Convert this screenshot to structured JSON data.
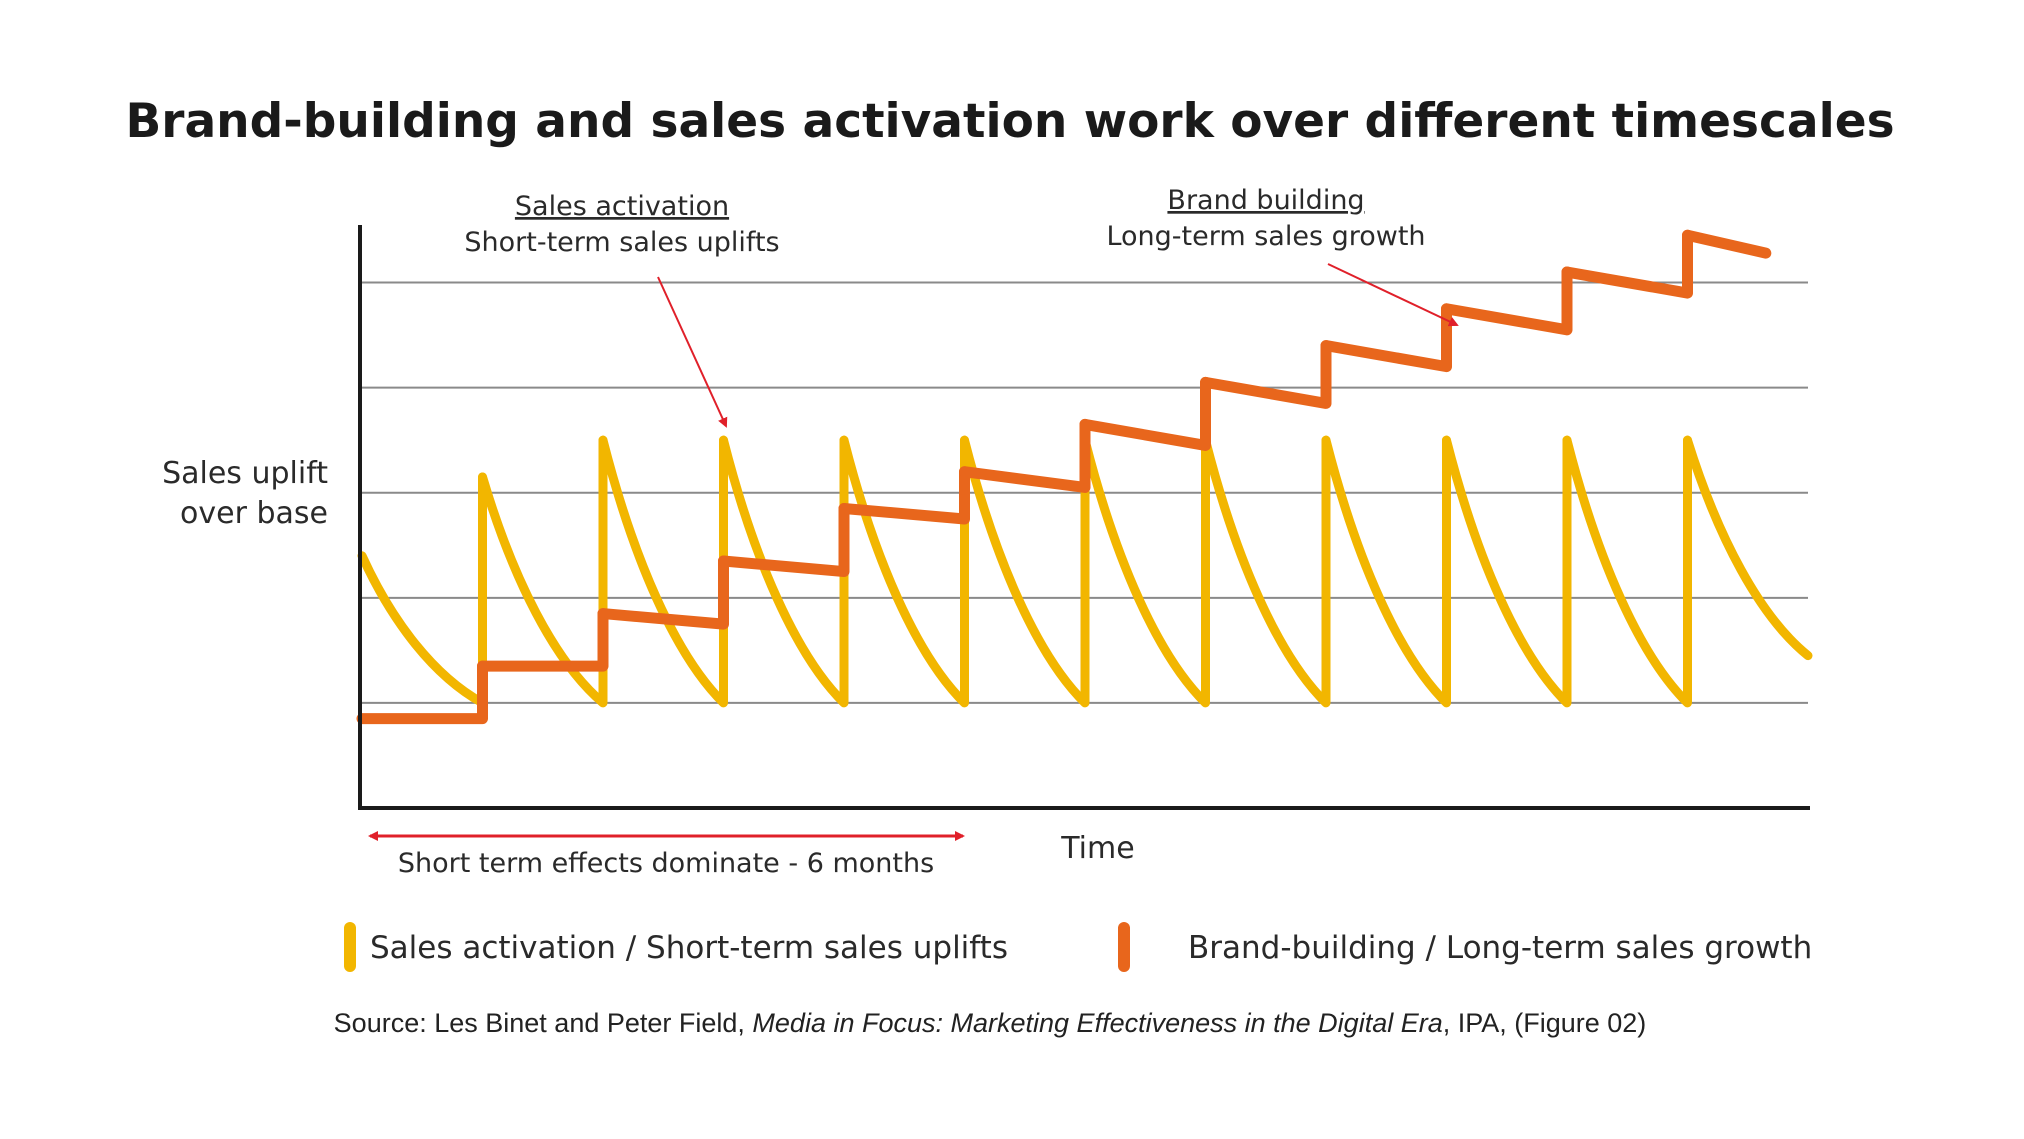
{
  "chart_data": {
    "type": "line",
    "title": "Brand-building and sales activation work over different timescales",
    "ylabel_lines": [
      "Sales uplift",
      "over base"
    ],
    "xlabel": "Time",
    "grid": "horizontal",
    "ylim": [
      0,
      5.5
    ],
    "xlim": [
      0,
      12
    ],
    "gridlines": [
      1,
      2,
      3,
      4,
      5
    ],
    "colors": {
      "activation": "#F2B600",
      "brand": "#E8661C",
      "annotation_arrow": "#E0202A",
      "axis": "#1a1a1a",
      "grid": "#8a8a8a"
    },
    "series": [
      {
        "id": "activation",
        "legend": "Sales activation / Short-term sales uplifts",
        "pulses": [
          {
            "start": 0,
            "peak": 2.4,
            "end": 1,
            "base": 1
          },
          {
            "start": 1,
            "peak": 3.15,
            "end": 2,
            "base": 1
          },
          {
            "start": 2,
            "peak": 3.5,
            "end": 3,
            "base": 1
          },
          {
            "start": 3,
            "peak": 3.5,
            "end": 4,
            "base": 1
          },
          {
            "start": 4,
            "peak": 3.5,
            "end": 5,
            "base": 1
          },
          {
            "start": 5,
            "peak": 3.5,
            "end": 6,
            "base": 1
          },
          {
            "start": 6,
            "peak": 3.5,
            "end": 7,
            "base": 1
          },
          {
            "start": 7,
            "peak": 3.5,
            "end": 8,
            "base": 1
          },
          {
            "start": 8,
            "peak": 3.5,
            "end": 9,
            "base": 1
          },
          {
            "start": 9,
            "peak": 3.5,
            "end": 10,
            "base": 1
          },
          {
            "start": 10,
            "peak": 3.5,
            "end": 11,
            "base": 1
          },
          {
            "start": 11,
            "peak": 3.5,
            "end": 12,
            "base": 1.45
          }
        ]
      },
      {
        "id": "brand",
        "legend": "Brand-building / Long-term sales growth",
        "steps": [
          {
            "x0": 0,
            "y0": 0.85,
            "x1": 1,
            "y1": 0.85
          },
          {
            "x0": 1,
            "y0": 1.35,
            "x1": 2,
            "y1": 1.35
          },
          {
            "x0": 2,
            "y0": 1.85,
            "x1": 3,
            "y1": 1.75
          },
          {
            "x0": 3,
            "y0": 2.35,
            "x1": 4,
            "y1": 2.25
          },
          {
            "x0": 4,
            "y0": 2.85,
            "x1": 5,
            "y1": 2.75
          },
          {
            "x0": 5,
            "y0": 3.2,
            "x1": 6,
            "y1": 3.05
          },
          {
            "x0": 6,
            "y0": 3.65,
            "x1": 7,
            "y1": 3.45
          },
          {
            "x0": 7,
            "y0": 4.05,
            "x1": 8,
            "y1": 3.85
          },
          {
            "x0": 8,
            "y0": 4.4,
            "x1": 9,
            "y1": 4.2
          },
          {
            "x0": 9,
            "y0": 4.75,
            "x1": 10,
            "y1": 4.55
          },
          {
            "x0": 10,
            "y0": 5.1,
            "x1": 11,
            "y1": 4.9
          },
          {
            "x0": 11,
            "y0": 5.45,
            "x1": 11.65,
            "y1": 5.28
          }
        ]
      }
    ],
    "annotations": {
      "activation_head": "Sales activation",
      "activation_sub": "Short-term sales uplifts",
      "brand_head": "Brand building",
      "brand_sub": "Long-term sales growth",
      "short_term": "Short term effects dominate - 6 months"
    },
    "source": {
      "prefix": "Source: Les Binet and Peter Field, ",
      "italic": "Media in Focus: Marketing Effectiveness in the Digital Era",
      "suffix": ", IPA, (Figure 02)"
    }
  }
}
